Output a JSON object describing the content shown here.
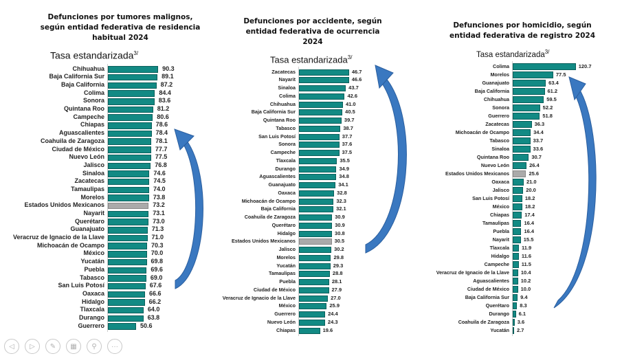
{
  "tasa_label": "Tasa estandarizada",
  "tasa_sup": "3/",
  "colors": {
    "bar": "#128a84",
    "national": "#aaaaaa",
    "arrow": "#3a78c0"
  },
  "toolbar": {
    "icons": [
      "previous-icon",
      "next-icon",
      "pen-icon",
      "slides-icon",
      "zoom-icon",
      "more-icon"
    ]
  },
  "chart_data": [
    {
      "type": "bar",
      "title": "Defunciones por tumores malignos,\nsegún entidad federativa de residencia\nhabitual 2024",
      "ylabel": "Tasa estandarizada 3/",
      "categories": [
        "Chihuahua",
        "Baja California Sur",
        "Baja California",
        "Colima",
        "Sonora",
        "Quintana Roo",
        "Campeche",
        "Chiapas",
        "Aguascalientes",
        "Coahuila de Zaragoza",
        "Ciudad de México",
        "Nuevo León",
        "Jalisco",
        "Sinaloa",
        "Zacatecas",
        "Tamaulipas",
        "Morelos",
        "Estados Unidos Mexicanos",
        "Nayarit",
        "Querétaro",
        "Guanajuato",
        "Veracruz de Ignacio de la Llave",
        "Michoacán de Ocampo",
        "México",
        "Yucatán",
        "Puebla",
        "Tabasco",
        "San Luis Potosí",
        "Oaxaca",
        "Hidalgo",
        "Tlaxcala",
        "Durango",
        "Guerrero"
      ],
      "values": [
        90.3,
        89.1,
        87.2,
        84.4,
        83.6,
        81.2,
        80.6,
        78.6,
        78.4,
        78.1,
        77.7,
        77.5,
        76.8,
        74.6,
        74.5,
        74.0,
        73.8,
        73.2,
        73.1,
        73.0,
        71.3,
        71.0,
        70.3,
        70.0,
        69.8,
        69.6,
        69.0,
        67.6,
        66.6,
        66.2,
        64.0,
        63.8,
        50.6
      ],
      "labels": [
        "90.3",
        "89.1",
        "87.2",
        "84.4",
        "83.6",
        "81.2",
        "80.6",
        "78.6",
        "78.4",
        "78.1",
        "77.7",
        "77.5",
        "76.8",
        "74.6",
        "74.5",
        "74.0",
        "73.8",
        "73.2",
        "73.1",
        "73.0",
        "71.3",
        "71.0",
        "70.3",
        "70.0",
        "69.8",
        "69.6",
        "69.0",
        "67.6",
        "66.6",
        "66.2",
        "64.0",
        "63.8",
        "50.6"
      ],
      "highlight": "Estados Unidos Mexicanos"
    },
    {
      "type": "bar",
      "title": "Defunciones por accidente, según\nentidad federativa de ocurrencia\n2024",
      "ylabel": "Tasa estandarizada 3/",
      "categories": [
        "Zacatecas",
        "Nayarit",
        "Sinaloa",
        "Colima",
        "Chihuahua",
        "Baja California Sur",
        "Quintana Roo",
        "Tabasco",
        "San Luis Potosí",
        "Sonora",
        "Campeche",
        "Tlaxcala",
        "Durango",
        "Aguascalientes",
        "Guanajuato",
        "Oaxaca",
        "Michoacán de Ocampo",
        "Baja California",
        "Coahuila de Zaragoza",
        "Querétaro",
        "Hidalgo",
        "Estados Unidos Mexicanos",
        "Jalisco",
        "Morelos",
        "Yucatán",
        "Tamaulipas",
        "Puebla",
        "Ciudad de México",
        "Veracruz de Ignacio de la Llave",
        "México",
        "Guerrero",
        "Nuevo León",
        "Chiapas"
      ],
      "values": [
        46.7,
        46.6,
        43.7,
        42.6,
        41.0,
        40.5,
        39.7,
        38.7,
        37.7,
        37.6,
        37.5,
        35.5,
        34.9,
        34.8,
        34.1,
        32.8,
        32.3,
        32.1,
        30.9,
        30.9,
        30.8,
        30.5,
        30.2,
        29.8,
        29.3,
        28.8,
        28.1,
        27.9,
        27.0,
        25.9,
        24.4,
        24.3,
        19.6
      ],
      "labels": [
        "46.7",
        "46.6",
        "43.7",
        "42.6",
        "41.0",
        "40.5",
        "39.7",
        "38.7",
        "37.7",
        "37.6",
        "37.5",
        "35.5",
        "34.9",
        "34.8",
        "34.1",
        "32.8",
        "32.3",
        "32.1",
        "30.9",
        "30.9",
        "30.8",
        "30.5",
        "30.2",
        "29.8",
        "29.3",
        "28.8",
        "28.1",
        "27.9",
        "27.0",
        "25.9",
        "24.4",
        "24.3",
        "19.6"
      ],
      "highlight": "Estados Unidos Mexicanos"
    },
    {
      "type": "bar",
      "title": "Defunciones por homicidio, según\nentidad federativa de registro 2024",
      "ylabel": "Tasa estandarizada 3/",
      "categories": [
        "Colima",
        "Morelos",
        "Guanajuato",
        "Baja California",
        "Chihuahua",
        "Sonora",
        "Guerrero",
        "Zacatecas",
        "Michoacán de Ocampo",
        "Tabasco",
        "Sinaloa",
        "Quintana Roo",
        "Nuevo León",
        "Estados Unidos Mexicanos",
        "Oaxaca",
        "Jalisco",
        "San Luis Potosí",
        "México",
        "Chiapas",
        "Tamaulipas",
        "Puebla",
        "Nayarit",
        "Tlaxcala",
        "Hidalgo",
        "Campeche",
        "Veracruz de Ignacio de la Llave",
        "Aguascalientes",
        "Ciudad de México",
        "Baja California Sur",
        "Querétaro",
        "Durango",
        "Coahuila de Zaragoza",
        "Yucatán"
      ],
      "values": [
        120.7,
        77.5,
        63.4,
        61.2,
        59.5,
        52.2,
        51.8,
        36.3,
        34.4,
        33.7,
        33.6,
        30.7,
        26.4,
        25.6,
        21.0,
        20.0,
        18.2,
        18.2,
        17.4,
        16.4,
        16.4,
        15.5,
        11.9,
        11.6,
        11.5,
        10.4,
        10.2,
        10.0,
        9.4,
        8.3,
        6.1,
        3.6,
        2.7
      ],
      "labels": [
        "120.7",
        "77.5",
        "63.4",
        "61.2",
        "59.5",
        "52.2",
        "51.8",
        "36.3",
        "34.4",
        "33.7",
        "33.6",
        "30.7",
        "26.4",
        "25.6",
        "21.0",
        "20.0",
        "18.2",
        "18.2",
        "17.4",
        "16.4",
        "16.4",
        "15.5",
        "11.9",
        "11.6",
        "11.5",
        "10.4",
        "10.2",
        "10.0",
        "9.4",
        "8.3",
        "6.1",
        "3.6",
        "2.7"
      ],
      "highlight": "Estados Unidos Mexicanos"
    }
  ]
}
